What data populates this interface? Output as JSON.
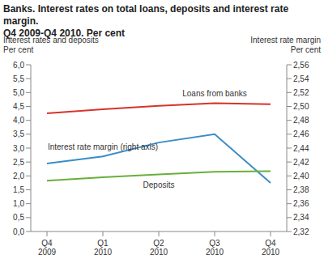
{
  "chart_data": {
    "type": "line",
    "title": "Banks. Interest rates on total loans, deposits and interest rate margin.",
    "subtitle": "Q4 2009-Q4 2010. Per cent",
    "y_label": "Interest rates and deposits\nPer cent",
    "y2_label": "Interest rate margin\nPer cent",
    "categories": [
      "Q4\n2009",
      "Q1\n2010",
      "Q2\n2010",
      "Q3\n2010",
      "Q4\n2010"
    ],
    "series": [
      {
        "name": "Loans from banks",
        "color": "#d7342a",
        "values": [
          4.25,
          4.4,
          4.52,
          4.62,
          4.58
        ]
      },
      {
        "name": "Interest rate margin (right axis)",
        "color": "#3a8dc6",
        "axis": "y2",
        "values": [
          2.418,
          2.428,
          2.448,
          2.46,
          2.39
        ]
      },
      {
        "name": "Deposits",
        "color": "#68b03a",
        "values": [
          1.83,
          1.95,
          2.05,
          2.15,
          2.17
        ]
      }
    ],
    "ylim": [
      0,
      6
    ],
    "yticks": [
      {
        "value": 0,
        "label": "0,0"
      },
      {
        "value": 0.5,
        "label": "0,5"
      },
      {
        "value": 1,
        "label": "1,0"
      },
      {
        "value": 1.5,
        "label": "1,5"
      },
      {
        "value": 2,
        "label": "2,0"
      },
      {
        "value": 2.5,
        "label": "2,5"
      },
      {
        "value": 3,
        "label": "3,0"
      },
      {
        "value": 3.5,
        "label": "3,5"
      },
      {
        "value": 4,
        "label": "4,0"
      },
      {
        "value": 4.5,
        "label": "4,5"
      },
      {
        "value": 5,
        "label": "5,0"
      },
      {
        "value": 5.5,
        "label": "5,5"
      },
      {
        "value": 6,
        "label": "6,0"
      }
    ],
    "y2lim": [
      2.32,
      2.56
    ],
    "y2ticks": [
      {
        "value": 2.32,
        "label": "2,32"
      },
      {
        "value": 2.34,
        "label": "2,34"
      },
      {
        "value": 2.36,
        "label": "2,36"
      },
      {
        "value": 2.38,
        "label": "2,38"
      },
      {
        "value": 2.4,
        "label": "2,40"
      },
      {
        "value": 2.42,
        "label": "2,42"
      },
      {
        "value": 2.44,
        "label": "2,44"
      },
      {
        "value": 2.46,
        "label": "2,46"
      },
      {
        "value": 2.48,
        "label": "2,48"
      },
      {
        "value": 2.5,
        "label": "2,50"
      },
      {
        "value": 2.52,
        "label": "2,52"
      },
      {
        "value": 2.54,
        "label": "2,54"
      },
      {
        "value": 2.56,
        "label": "2,56"
      }
    ],
    "grid": false
  }
}
